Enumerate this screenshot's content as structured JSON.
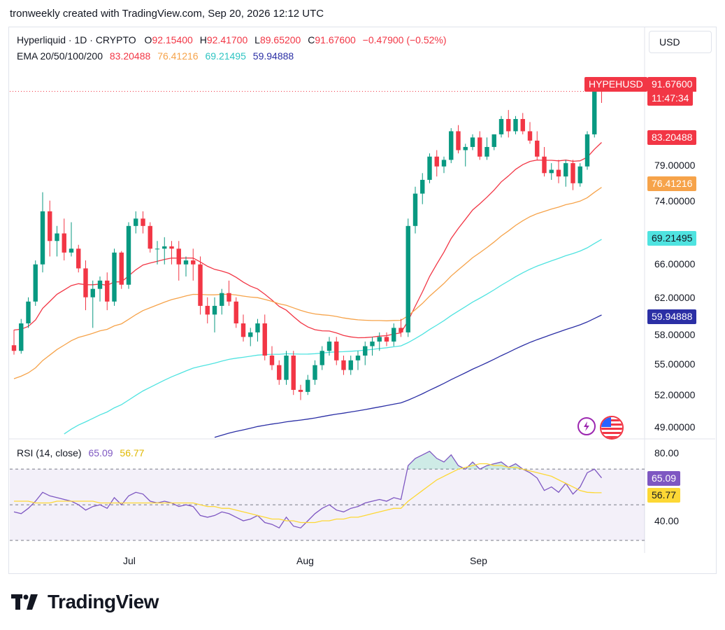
{
  "header": {
    "created_text": "tronweekly created with TradingView.com, Sep 20, 2026 12:12 UTC"
  },
  "legend": {
    "symbol_text": "Hyperliquid · 1D · CRYPTO",
    "o_label": "O",
    "o_value": "92.15400",
    "h_label": "H",
    "h_value": "92.41700",
    "l_label": "L",
    "l_value": "89.65200",
    "c_label": "C",
    "c_value": "91.67600",
    "change": "−0.47900 (−0.52%)",
    "ema_label": "EMA 20/50/100/200",
    "ema20": "83.20488",
    "ema50": "76.41216",
    "ema100": "69.21495",
    "ema200": "59.94888"
  },
  "currency_button": "USD",
  "price_tags": {
    "symbol": "HYPEHUSD",
    "last": "91.67600",
    "countdown": "11:47:34",
    "ema20": "83.20488",
    "ema50": "76.41216",
    "ema100": "69.21495",
    "ema200": "59.94888"
  },
  "rsi": {
    "label": "RSI (14, close)",
    "value": "65.09",
    "ma_value": "56.77"
  },
  "brand": {
    "logo_text": "TradingView"
  },
  "colors": {
    "up": "#089981",
    "down": "#f23645",
    "ema20": "#f23645",
    "ema50": "#f6a34a",
    "ema100": "#4fe3e0",
    "ema200": "#2b2fa5",
    "rsi": "#7e57c2",
    "rsi_ma": "#fdd835"
  },
  "chart_data": [
    {
      "type": "candlestick",
      "title": "Hyperliquid · 1D · CRYPTO",
      "y_ticks": [
        "79.00000",
        "74.00000",
        "66.00000",
        "62.00000",
        "58.00000",
        "55.00000",
        "52.00000",
        "49.00000"
      ],
      "x_ticks": [
        "Jul",
        "Aug",
        "Sep"
      ],
      "ylim": [
        47.5,
        96.0
      ],
      "scale": "log",
      "ohlc": [
        [
          56.6,
          58.3,
          55.6,
          56.0
        ],
        [
          56.0,
          59.5,
          55.7,
          59.0
        ],
        [
          59.0,
          62.0,
          58.5,
          61.5
        ],
        [
          61.5,
          66.5,
          61.0,
          66.0
        ],
        [
          66.0,
          75.7,
          65.0,
          73.0
        ],
        [
          73.0,
          74.5,
          67.0,
          69.0
        ],
        [
          69.0,
          71.0,
          67.0,
          70.0
        ],
        [
          70.0,
          72.0,
          66.5,
          67.5
        ],
        [
          67.5,
          71.5,
          67.0,
          68.0
        ],
        [
          68.0,
          68.5,
          65.0,
          65.5
        ],
        [
          65.5,
          66.5,
          60.5,
          62.0
        ],
        [
          62.0,
          64.0,
          58.5,
          63.0
        ],
        [
          63.0,
          64.5,
          61.5,
          64.0
        ],
        [
          64.0,
          65.0,
          60.5,
          61.5
        ],
        [
          61.5,
          68.0,
          61.0,
          67.5
        ],
        [
          67.5,
          67.7,
          63.0,
          63.5
        ],
        [
          63.5,
          71.5,
          63.0,
          71.0
        ],
        [
          71.0,
          73.0,
          70.0,
          72.0
        ],
        [
          72.0,
          73.0,
          70.0,
          71.0
        ],
        [
          71.0,
          71.5,
          67.5,
          68.0
        ],
        [
          68.0,
          69.0,
          66.0,
          68.0
        ],
        [
          68.0,
          69.5,
          66.0,
          68.3
        ],
        [
          68.3,
          69.0,
          66.0,
          68.0
        ],
        [
          68.0,
          69.0,
          64.0,
          66.0
        ],
        [
          66.0,
          67.0,
          64.5,
          66.5
        ],
        [
          66.5,
          68.0,
          64.0,
          66.0
        ],
        [
          66.0,
          67.0,
          60.0,
          61.0
        ],
        [
          61.0,
          62.0,
          59.0,
          60.0
        ],
        [
          60.0,
          62.0,
          58.0,
          61.0
        ],
        [
          61.0,
          63.0,
          60.0,
          62.5
        ],
        [
          62.5,
          64.0,
          61.0,
          61.5
        ],
        [
          61.5,
          62.0,
          58.5,
          59.0
        ],
        [
          59.0,
          60.0,
          57.0,
          57.5
        ],
        [
          57.5,
          58.5,
          56.5,
          58.0
        ],
        [
          58.0,
          59.5,
          57.0,
          59.0
        ],
        [
          59.0,
          60.0,
          55.0,
          55.5
        ],
        [
          55.5,
          56.5,
          54.0,
          54.5
        ],
        [
          54.5,
          55.0,
          52.5,
          53.0
        ],
        [
          53.0,
          56.0,
          52.5,
          55.5
        ],
        [
          55.5,
          56.0,
          51.5,
          52.0
        ],
        [
          52.0,
          52.5,
          51.0,
          51.8
        ],
        [
          51.8,
          53.5,
          51.5,
          53.0
        ],
        [
          53.0,
          55.0,
          52.5,
          54.5
        ],
        [
          54.5,
          56.5,
          54.0,
          56.0
        ],
        [
          56.0,
          57.5,
          55.5,
          57.0
        ],
        [
          57.0,
          57.5,
          54.5,
          55.0
        ],
        [
          55.0,
          55.5,
          53.5,
          54.0
        ],
        [
          54.0,
          55.5,
          53.5,
          55.0
        ],
        [
          55.0,
          56.0,
          54.0,
          55.5
        ],
        [
          55.5,
          57.0,
          54.5,
          56.5
        ],
        [
          56.5,
          57.5,
          55.5,
          57.0
        ],
        [
          57.0,
          58.0,
          56.0,
          57.5
        ],
        [
          57.5,
          58.0,
          56.5,
          57.0
        ],
        [
          57.0,
          59.0,
          56.5,
          58.5
        ],
        [
          58.5,
          59.5,
          57.5,
          58.0
        ],
        [
          58.0,
          72.0,
          57.5,
          71.0
        ],
        [
          71.0,
          76.5,
          70.0,
          75.5
        ],
        [
          75.5,
          78.5,
          74.0,
          77.5
        ],
        [
          77.5,
          81.5,
          77.0,
          81.0
        ],
        [
          81.0,
          82.0,
          78.0,
          79.5
        ],
        [
          79.5,
          81.0,
          78.5,
          80.5
        ],
        [
          80.5,
          85.5,
          80.0,
          85.0
        ],
        [
          85.0,
          86.0,
          81.5,
          82.0
        ],
        [
          82.0,
          83.0,
          79.5,
          82.5
        ],
        [
          82.5,
          84.5,
          82.0,
          84.0
        ],
        [
          84.0,
          85.0,
          80.5,
          81.0
        ],
        [
          81.0,
          84.0,
          80.5,
          82.5
        ],
        [
          82.5,
          84.5,
          82.0,
          84.5
        ],
        [
          84.5,
          87.5,
          84.0,
          87.0
        ],
        [
          87.0,
          88.5,
          84.0,
          85.0
        ],
        [
          85.0,
          87.5,
          84.5,
          87.0
        ],
        [
          87.0,
          88.0,
          84.5,
          85.0
        ],
        [
          85.0,
          86.5,
          83.0,
          83.5
        ],
        [
          83.5,
          85.0,
          80.5,
          81.0
        ],
        [
          81.0,
          82.5,
          78.0,
          78.5
        ],
        [
          78.5,
          80.0,
          77.5,
          79.0
        ],
        [
          79.0,
          80.5,
          77.0,
          78.0
        ],
        [
          78.0,
          80.5,
          76.5,
          80.0
        ],
        [
          80.0,
          80.5,
          76.0,
          77.0
        ],
        [
          77.0,
          80.0,
          76.5,
          79.5
        ],
        [
          79.5,
          85.0,
          79.0,
          84.5
        ],
        [
          84.5,
          93.2,
          84.0,
          92.2
        ],
        [
          92.2,
          92.4,
          89.7,
          91.7
        ]
      ],
      "ema": [
        {
          "name": "EMA 20",
          "last": 83.20488
        },
        {
          "name": "EMA 50",
          "last": 76.41216
        },
        {
          "name": "EMA 100",
          "last": 69.21495
        },
        {
          "name": "EMA 200",
          "last": 59.94888
        }
      ]
    },
    {
      "type": "line",
      "title": "RSI (14, close)",
      "y_ticks": [
        "80.00",
        "40.00"
      ],
      "ylim": [
        30,
        85
      ],
      "bands": [
        70,
        50,
        30
      ],
      "series": [
        {
          "name": "RSI",
          "values": [
            46,
            45,
            48,
            52,
            57,
            55,
            54,
            53,
            52,
            50,
            47,
            49,
            50,
            48,
            54,
            50,
            55,
            57,
            56,
            52,
            51,
            52,
            51,
            49,
            50,
            49,
            44,
            43,
            44,
            46,
            45,
            43,
            41,
            42,
            44,
            40,
            39,
            37,
            43,
            38,
            37,
            41,
            45,
            48,
            50,
            47,
            46,
            48,
            49,
            51,
            52,
            53,
            52,
            54,
            53,
            72,
            76,
            78,
            80,
            76,
            74,
            78,
            72,
            70,
            74,
            70,
            72,
            73,
            74,
            71,
            73,
            70,
            68,
            65,
            58,
            60,
            57,
            62,
            56,
            60,
            68,
            70,
            65.09
          ]
        },
        {
          "name": "RSI MA",
          "values": [
            52,
            52,
            52,
            51,
            51,
            51,
            52,
            52,
            52,
            52,
            52,
            52,
            51,
            51,
            51,
            51,
            51,
            51,
            51,
            51,
            51,
            51,
            51,
            51,
            51,
            51,
            50,
            49,
            49,
            48,
            48,
            47,
            46,
            45,
            44,
            43,
            42,
            42,
            41,
            41,
            40,
            40,
            40,
            41,
            41,
            42,
            42,
            43,
            43,
            44,
            45,
            46,
            47,
            48,
            48,
            52,
            55,
            58,
            61,
            64,
            66,
            68,
            70,
            71,
            72,
            73,
            73,
            72,
            72,
            71,
            71,
            70,
            69,
            68,
            67,
            66,
            64,
            62,
            60,
            58,
            57,
            56.8,
            56.77
          ]
        }
      ]
    }
  ]
}
